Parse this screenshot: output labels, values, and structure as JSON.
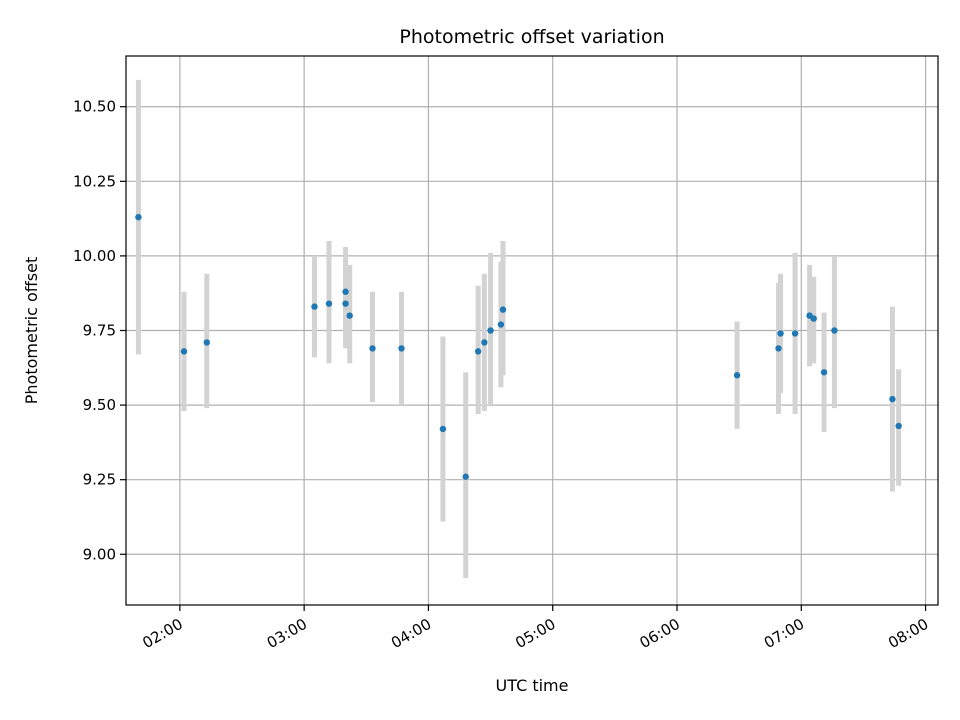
{
  "chart_data": {
    "type": "scatter",
    "title": "Photometric offset variation",
    "xlabel": "UTC time",
    "ylabel": "Photometric offset",
    "x_is_time": true,
    "xlim": [
      "01:34",
      "08:06"
    ],
    "ylim": [
      8.83,
      10.67
    ],
    "xticks": [
      "02:00",
      "03:00",
      "04:00",
      "05:00",
      "06:00",
      "07:00",
      "08:00"
    ],
    "yticks": [
      9.0,
      9.25,
      9.5,
      9.75,
      10.0,
      10.25,
      10.5
    ],
    "ytick_labels": [
      "9.00",
      "9.25",
      "9.50",
      "9.75",
      "10.00",
      "10.25",
      "10.50"
    ],
    "grid": true,
    "legend": false,
    "marker_color": "#1f77b4",
    "errorbar_color": "#d3d3d3",
    "points": [
      {
        "x": "01:40",
        "y": 10.13,
        "ylo": 9.67,
        "yhi": 10.59
      },
      {
        "x": "02:02",
        "y": 9.68,
        "ylo": 9.48,
        "yhi": 9.88
      },
      {
        "x": "02:13",
        "y": 9.71,
        "ylo": 9.49,
        "yhi": 9.94
      },
      {
        "x": "03:05",
        "y": 9.83,
        "ylo": 9.66,
        "yhi": 10.0
      },
      {
        "x": "03:12",
        "y": 9.84,
        "ylo": 9.64,
        "yhi": 10.05
      },
      {
        "x": "03:20",
        "y": 9.88,
        "ylo": 9.73,
        "yhi": 10.03
      },
      {
        "x": "03:20",
        "y": 9.84,
        "ylo": 9.69,
        "yhi": 9.99
      },
      {
        "x": "03:22",
        "y": 9.8,
        "ylo": 9.64,
        "yhi": 9.97
      },
      {
        "x": "03:33",
        "y": 9.69,
        "ylo": 9.51,
        "yhi": 9.88
      },
      {
        "x": "03:47",
        "y": 9.69,
        "ylo": 9.5,
        "yhi": 9.88
      },
      {
        "x": "04:07",
        "y": 9.42,
        "ylo": 9.11,
        "yhi": 9.73
      },
      {
        "x": "04:18",
        "y": 9.26,
        "ylo": 8.92,
        "yhi": 9.61
      },
      {
        "x": "04:24",
        "y": 9.68,
        "ylo": 9.47,
        "yhi": 9.9
      },
      {
        "x": "04:27",
        "y": 9.71,
        "ylo": 9.48,
        "yhi": 9.94
      },
      {
        "x": "04:30",
        "y": 9.75,
        "ylo": 9.5,
        "yhi": 10.01
      },
      {
        "x": "04:35",
        "y": 9.77,
        "ylo": 9.56,
        "yhi": 9.98
      },
      {
        "x": "04:36",
        "y": 9.82,
        "ylo": 9.6,
        "yhi": 10.05
      },
      {
        "x": "06:29",
        "y": 9.6,
        "ylo": 9.42,
        "yhi": 9.78
      },
      {
        "x": "06:49",
        "y": 9.69,
        "ylo": 9.47,
        "yhi": 9.91
      },
      {
        "x": "06:50",
        "y": 9.74,
        "ylo": 9.54,
        "yhi": 9.94
      },
      {
        "x": "06:57",
        "y": 9.74,
        "ylo": 9.47,
        "yhi": 10.01
      },
      {
        "x": "07:04",
        "y": 9.8,
        "ylo": 9.63,
        "yhi": 9.97
      },
      {
        "x": "07:06",
        "y": 9.79,
        "ylo": 9.64,
        "yhi": 9.93
      },
      {
        "x": "07:11",
        "y": 9.61,
        "ylo": 9.41,
        "yhi": 9.81
      },
      {
        "x": "07:16",
        "y": 9.75,
        "ylo": 9.49,
        "yhi": 10.0
      },
      {
        "x": "07:44",
        "y": 9.52,
        "ylo": 9.21,
        "yhi": 9.83
      },
      {
        "x": "07:47",
        "y": 9.43,
        "ylo": 9.23,
        "yhi": 9.62
      }
    ]
  }
}
